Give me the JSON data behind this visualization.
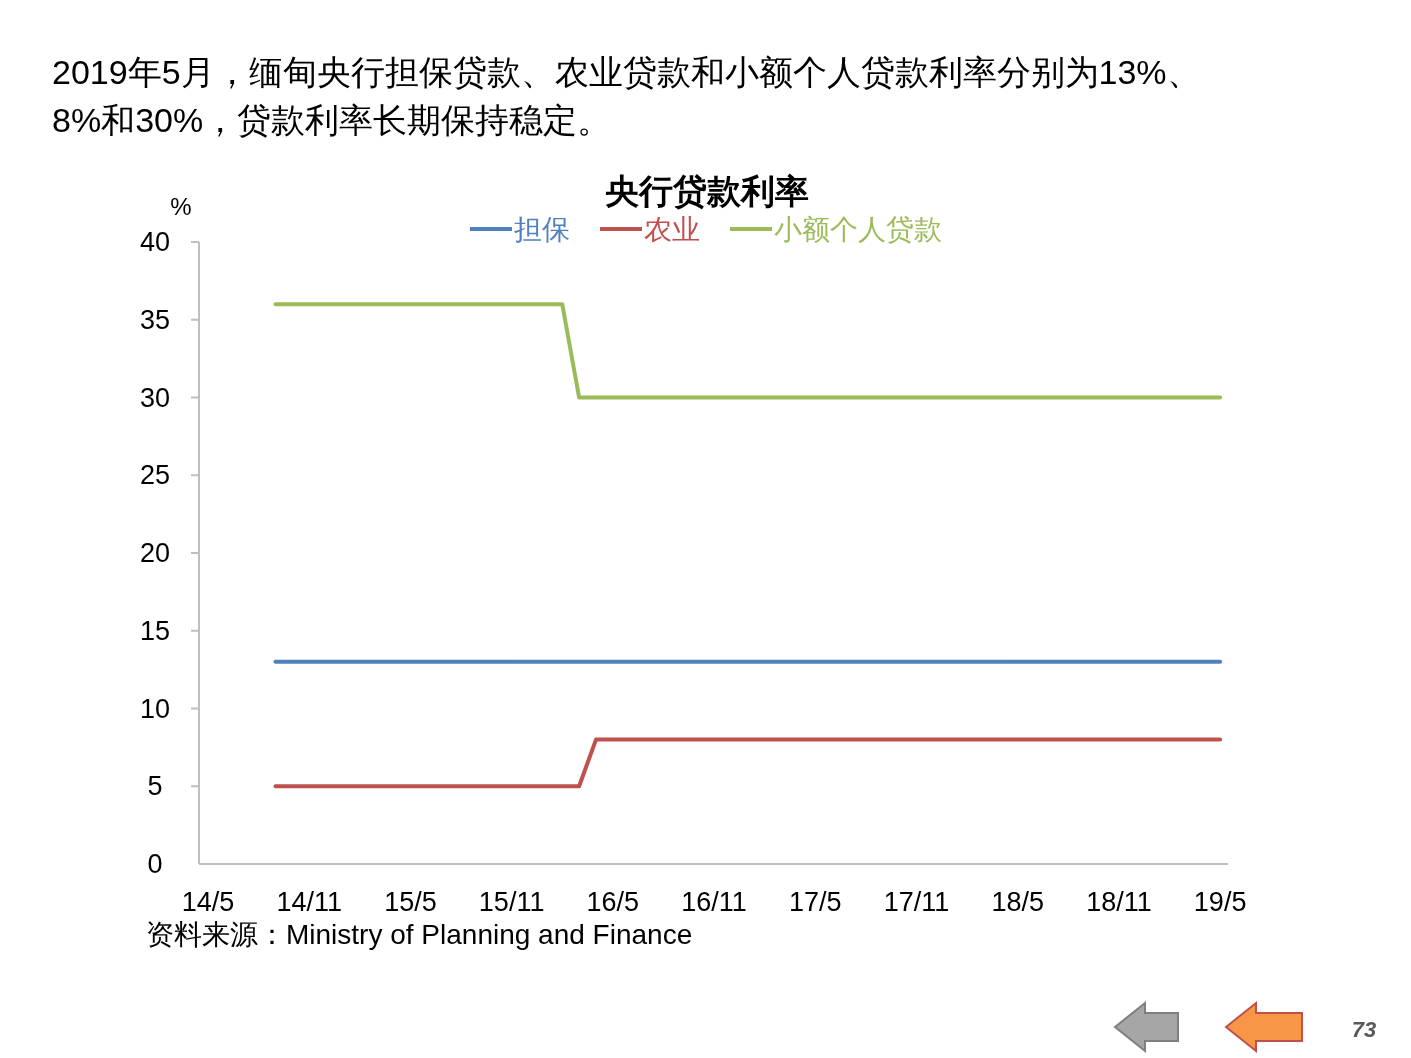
{
  "chart_data": {
    "type": "line",
    "title": "央行贷款利率",
    "subtitle": "2019年5月，缅甸央行担保贷款、农业贷款和小额个人贷款利率分别为13%、8%和30%，贷款利率长期保持稳定。",
    "ylabel": "%",
    "annotations": [
      "资料来源：Ministry of Planning and Finance",
      "73"
    ],
    "xlim": [
      "2014-04-15",
      "2019-05-15"
    ],
    "xticks": [
      {
        "value": "2014-05",
        "label": "14/5"
      },
      {
        "value": "2014-11",
        "label": "14/11"
      },
      {
        "value": "2015-05",
        "label": "15/5"
      },
      {
        "value": "2015-11",
        "label": "15/11"
      },
      {
        "value": "2016-05",
        "label": "16/5"
      },
      {
        "value": "2016-11",
        "label": "16/11"
      },
      {
        "value": "2017-05",
        "label": "17/5"
      },
      {
        "value": "2017-11",
        "label": "17/11"
      },
      {
        "value": "2018-05",
        "label": "18/5"
      },
      {
        "value": "2018-11",
        "label": "18/11"
      },
      {
        "value": "2019-05",
        "label": "19/5"
      }
    ],
    "ylim": [
      0,
      40
    ],
    "yticks": [
      0,
      5,
      10,
      15,
      20,
      25,
      30,
      35,
      40
    ],
    "grid": false,
    "legend": "top",
    "marker": "none",
    "line_style": "solid",
    "series": [
      {
        "name": "担保",
        "color": "#4f81bd",
        "x": [
          "2014-09",
          "2019-05"
        ],
        "values": [
          13,
          13
        ]
      },
      {
        "name": "农业",
        "color": "#c0504d",
        "x": [
          "2014-09",
          "2016-03",
          "2016-04",
          "2019-05"
        ],
        "values": [
          5,
          5,
          8,
          8
        ]
      },
      {
        "name": "小额个人贷款",
        "color": "#9bbb59",
        "x": [
          "2014-09",
          "2016-02",
          "2016-03",
          "2019-05"
        ],
        "values": [
          36,
          36,
          30,
          30
        ]
      }
    ]
  }
}
